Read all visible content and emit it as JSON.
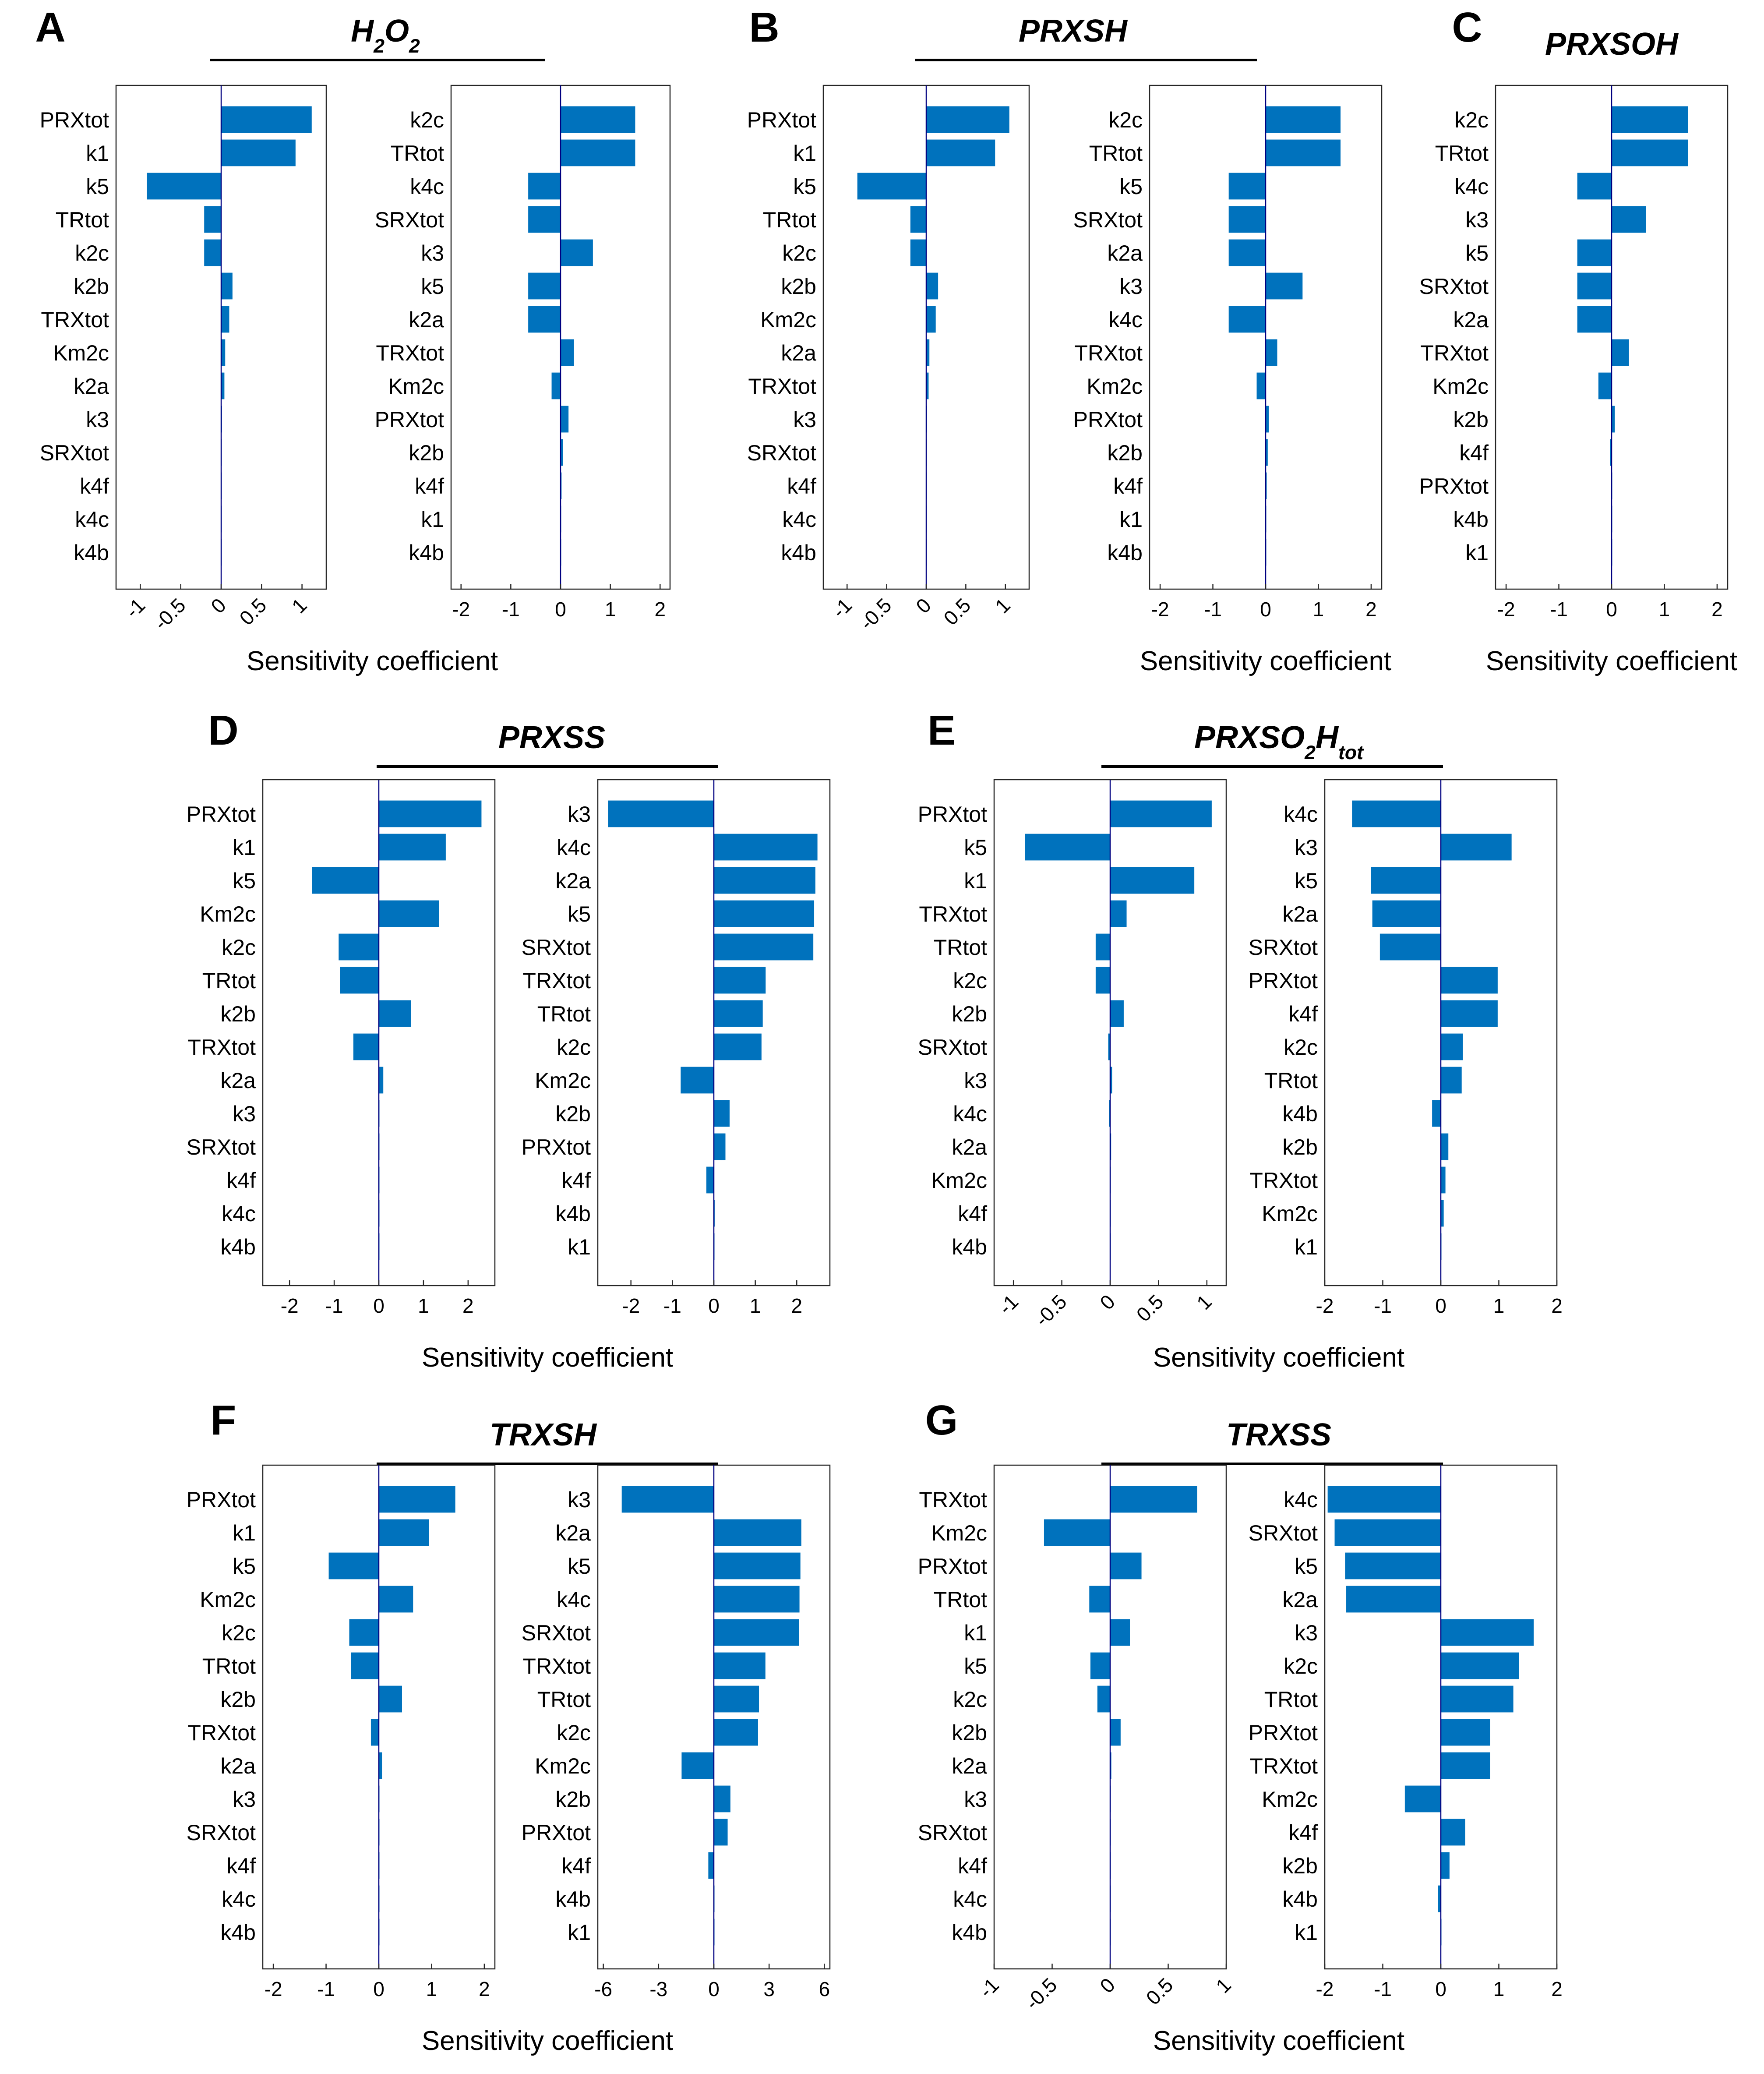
{
  "colors": {
    "bar": "#0072BD",
    "axis": "#262626",
    "zero_line": "#000080",
    "text": "#000000"
  },
  "xlabel": "Sensitivity coefficient",
  "panels": [
    {
      "letter": "A",
      "title": "H2O2",
      "title_parts": [
        [
          "H",
          ""
        ],
        [
          "2",
          "sub"
        ],
        [
          "O",
          ""
        ],
        [
          "2",
          "sub"
        ]
      ]
    },
    {
      "letter": "B",
      "title": "PRXSH",
      "title_parts": [
        [
          "PRXSH",
          ""
        ]
      ]
    },
    {
      "letter": "C",
      "title": "PRXSOH",
      "title_parts": [
        [
          "PRXSOH",
          ""
        ]
      ]
    },
    {
      "letter": "D",
      "title": "PRXSS",
      "title_parts": [
        [
          "PRXSS",
          ""
        ]
      ]
    },
    {
      "letter": "E",
      "title": "PRXSO2Htot",
      "title_parts": [
        [
          "PRXSO",
          ""
        ],
        [
          "2",
          "sub"
        ],
        [
          "H",
          ""
        ],
        [
          "tot",
          "sub"
        ]
      ]
    },
    {
      "letter": "F",
      "title": "TRXSH",
      "title_parts": [
        [
          "TRXSH",
          ""
        ]
      ]
    },
    {
      "letter": "G",
      "title": "TRXSS",
      "title_parts": [
        [
          "TRXSS",
          ""
        ]
      ]
    }
  ],
  "chart_data": [
    {
      "id": "A1",
      "panel": "A",
      "type": "bar",
      "orientation": "horizontal",
      "categories": [
        "PRXtot",
        "k1",
        "k5",
        "TRtot",
        "k2c",
        "k2b",
        "TRXtot",
        "Km2c",
        "k2a",
        "k3",
        "SRXtot",
        "k4f",
        "k4c",
        "k4b"
      ],
      "values": [
        1.12,
        0.92,
        -0.92,
        -0.21,
        -0.21,
        0.14,
        0.1,
        0.05,
        0.04,
        0.01,
        0.005,
        0.005,
        0.003,
        0.003
      ],
      "xlim": [
        -1.3,
        1.3
      ],
      "xticks": [
        -1,
        -0.5,
        0,
        0.5,
        1
      ],
      "xtick_labels": [
        "-1",
        "-0.5",
        "0",
        "0.5",
        "1"
      ],
      "rotated_ticks": true,
      "xlabel": ""
    },
    {
      "id": "A2",
      "panel": "A",
      "type": "bar",
      "orientation": "horizontal",
      "categories": [
        "k2c",
        "TRtot",
        "k4c",
        "SRXtot",
        "k3",
        "k5",
        "k2a",
        "TRXtot",
        "Km2c",
        "PRXtot",
        "k2b",
        "k4f",
        "k1",
        "k4b"
      ],
      "values": [
        1.5,
        1.5,
        -0.65,
        -0.65,
        0.65,
        -0.65,
        -0.65,
        0.27,
        -0.18,
        0.16,
        0.05,
        0.02,
        0.01,
        0.01
      ],
      "xlim": [
        -2.2,
        2.2
      ],
      "xticks": [
        -2,
        -1,
        0,
        1,
        2
      ],
      "xtick_labels": [
        "-2",
        "-1",
        "0",
        "1",
        "2"
      ],
      "rotated_ticks": false,
      "xlabel": ""
    },
    {
      "id": "B1",
      "panel": "B",
      "type": "bar",
      "orientation": "horizontal",
      "categories": [
        "PRXtot",
        "k1",
        "k5",
        "TRtot",
        "k2c",
        "k2b",
        "Km2c",
        "k2a",
        "TRXtot",
        "k3",
        "SRXtot",
        "k4f",
        "k4c",
        "k4b"
      ],
      "values": [
        1.05,
        0.87,
        -0.87,
        -0.2,
        -0.2,
        0.15,
        0.12,
        0.04,
        0.03,
        0.01,
        0.005,
        0.005,
        0.003,
        0.003
      ],
      "xlim": [
        -1.3,
        1.3
      ],
      "xticks": [
        -1,
        -0.5,
        0,
        0.5,
        1
      ],
      "xtick_labels": [
        "-1",
        "-0.5",
        "0",
        "0.5",
        "1"
      ],
      "rotated_ticks": true,
      "xlabel": ""
    },
    {
      "id": "B2",
      "panel": "B",
      "type": "bar",
      "orientation": "horizontal",
      "categories": [
        "k2c",
        "TRtot",
        "k5",
        "SRXtot",
        "k2a",
        "k3",
        "k4c",
        "TRXtot",
        "Km2c",
        "PRXtot",
        "k2b",
        "k4f",
        "k1",
        "k4b"
      ],
      "values": [
        1.42,
        1.42,
        -0.7,
        -0.7,
        -0.7,
        0.7,
        -0.7,
        0.22,
        -0.17,
        0.06,
        0.04,
        0.02,
        0.01,
        0.01
      ],
      "xlim": [
        -2.2,
        2.2
      ],
      "xticks": [
        -2,
        -1,
        0,
        1,
        2
      ],
      "xtick_labels": [
        "-2",
        "-1",
        "0",
        "1",
        "2"
      ],
      "rotated_ticks": false,
      "xlabel": "Sensitivity coefficient"
    },
    {
      "id": "C",
      "panel": "C",
      "type": "bar",
      "orientation": "horizontal",
      "categories": [
        "k2c",
        "TRtot",
        "k4c",
        "k3",
        "k5",
        "SRXtot",
        "k2a",
        "TRXtot",
        "Km2c",
        "k2b",
        "k4f",
        "PRXtot",
        "k4b",
        "k1"
      ],
      "values": [
        1.45,
        1.45,
        -0.65,
        0.65,
        -0.65,
        -0.65,
        -0.65,
        0.33,
        -0.25,
        0.06,
        -0.03,
        0.01,
        0.005,
        0.005
      ],
      "xlim": [
        -2.2,
        2.2
      ],
      "xticks": [
        -2,
        -1,
        0,
        1,
        2
      ],
      "xtick_labels": [
        "-2",
        "-1",
        "0",
        "1",
        "2"
      ],
      "rotated_ticks": false,
      "xlabel": "Sensitivity coefficient"
    },
    {
      "id": "D1",
      "panel": "D",
      "type": "bar",
      "orientation": "horizontal",
      "categories": [
        "PRXtot",
        "k1",
        "k5",
        "Km2c",
        "k2c",
        "TRtot",
        "k2b",
        "TRXtot",
        "k2a",
        "k3",
        "SRXtot",
        "k4f",
        "k4c",
        "k4b"
      ],
      "values": [
        2.3,
        1.5,
        -1.5,
        1.35,
        -0.9,
        -0.87,
        0.72,
        -0.57,
        0.1,
        0.01,
        0.01,
        0.005,
        0.005,
        0.005
      ],
      "xlim": [
        -2.6,
        2.6
      ],
      "xticks": [
        -2,
        -1,
        0,
        1,
        2
      ],
      "xtick_labels": [
        "-2",
        "-1",
        "0",
        "1",
        "2"
      ],
      "rotated_ticks": false,
      "xlabel": "Sensitivity coefficient"
    },
    {
      "id": "D2",
      "panel": "D",
      "type": "bar",
      "orientation": "horizontal",
      "categories": [
        "k3",
        "k4c",
        "k2a",
        "k5",
        "SRXtot",
        "TRXtot",
        "TRtot",
        "k2c",
        "Km2c",
        "k2b",
        "PRXtot",
        "k4f",
        "k4b",
        "k1"
      ],
      "values": [
        -2.55,
        2.5,
        2.45,
        2.42,
        2.4,
        1.25,
        1.18,
        1.15,
        -0.8,
        0.38,
        0.28,
        -0.18,
        0.02,
        0.01
      ],
      "xlim": [
        -2.8,
        2.8
      ],
      "xticks": [
        -2,
        -1,
        0,
        1,
        2
      ],
      "xtick_labels": [
        "-2",
        "-1",
        "0",
        "1",
        "2"
      ],
      "rotated_ticks": false,
      "xlabel": ""
    },
    {
      "id": "E1",
      "panel": "E",
      "type": "bar",
      "orientation": "horizontal",
      "categories": [
        "PRXtot",
        "k5",
        "k1",
        "TRXtot",
        "TRtot",
        "k2c",
        "k2b",
        "SRXtot",
        "k3",
        "k4c",
        "k2a",
        "Km2c",
        "k4f",
        "k4b"
      ],
      "values": [
        1.05,
        -0.88,
        0.87,
        0.17,
        -0.15,
        -0.15,
        0.14,
        -0.02,
        0.02,
        -0.01,
        0.01,
        0.005,
        0.003,
        0.003
      ],
      "xlim": [
        -1.2,
        1.2
      ],
      "xticks": [
        -1,
        -0.5,
        0,
        0.5,
        1
      ],
      "xtick_labels": [
        "-1",
        "-0.5",
        "0",
        "0.5",
        "1"
      ],
      "rotated_ticks": true,
      "xlabel": "Sensitivity coefficient"
    },
    {
      "id": "E2",
      "panel": "E",
      "type": "bar",
      "orientation": "horizontal",
      "categories": [
        "k4c",
        "k3",
        "k5",
        "k2a",
        "SRXtot",
        "PRXtot",
        "k4f",
        "k2c",
        "TRtot",
        "k4b",
        "k2b",
        "TRXtot",
        "Km2c",
        "k1"
      ],
      "values": [
        -1.53,
        1.22,
        -1.2,
        -1.18,
        -1.05,
        0.98,
        0.98,
        0.38,
        0.36,
        -0.15,
        0.13,
        0.08,
        0.05,
        0.01
      ],
      "xlim": [
        -2.0,
        2.0
      ],
      "xticks": [
        -2,
        -1,
        0,
        1,
        2
      ],
      "xtick_labels": [
        "-2",
        "-1",
        "0",
        "1",
        "2"
      ],
      "rotated_ticks": false,
      "xlabel": ""
    },
    {
      "id": "F1",
      "panel": "F",
      "type": "bar",
      "orientation": "horizontal",
      "categories": [
        "PRXtot",
        "k1",
        "k5",
        "Km2c",
        "k2c",
        "TRtot",
        "k2b",
        "TRXtot",
        "k2a",
        "k3",
        "SRXtot",
        "k4f",
        "k4c",
        "k4b"
      ],
      "values": [
        1.45,
        0.95,
        -0.95,
        0.65,
        -0.56,
        -0.53,
        0.44,
        -0.15,
        0.06,
        0.01,
        0.005,
        0.005,
        0.005,
        0.005
      ],
      "xlim": [
        -2.2,
        2.2
      ],
      "xticks": [
        -2,
        -1,
        0,
        1,
        2
      ],
      "xtick_labels": [
        "-2",
        "-1",
        "0",
        "1",
        "2"
      ],
      "rotated_ticks": false,
      "xlabel": "Sensitivity coefficient"
    },
    {
      "id": "F2",
      "panel": "F",
      "type": "bar",
      "orientation": "horizontal",
      "categories": [
        "k3",
        "k2a",
        "k5",
        "k4c",
        "SRXtot",
        "TRXtot",
        "TRtot",
        "k2c",
        "Km2c",
        "k2b",
        "PRXtot",
        "k4f",
        "k4b",
        "k1"
      ],
      "values": [
        -5.0,
        4.75,
        4.7,
        4.65,
        4.62,
        2.8,
        2.45,
        2.4,
        -1.75,
        0.9,
        0.75,
        -0.3,
        0.03,
        0.02
      ],
      "xlim": [
        -6.3,
        6.3
      ],
      "xticks": [
        -6,
        -3,
        0,
        3,
        6
      ],
      "xtick_labels": [
        "-6",
        "-3",
        "0",
        "3",
        "6"
      ],
      "rotated_ticks": false,
      "xlabel": ""
    },
    {
      "id": "G1",
      "panel": "G",
      "type": "bar",
      "orientation": "horizontal",
      "categories": [
        "TRXtot",
        "Km2c",
        "PRXtot",
        "TRtot",
        "k1",
        "k5",
        "k2c",
        "k2b",
        "k2a",
        "k3",
        "SRXtot",
        "k4f",
        "k4c",
        "k4b"
      ],
      "values": [
        0.75,
        -0.57,
        0.27,
        -0.18,
        0.17,
        -0.17,
        -0.11,
        0.09,
        0.01,
        0.005,
        0.005,
        0.005,
        0.003,
        0.003
      ],
      "xlim": [
        -1.0,
        1.0
      ],
      "xticks": [
        -1,
        -0.5,
        0,
        0.5,
        1
      ],
      "xtick_labels": [
        "-1",
        "-0.5",
        "0",
        "0.5",
        "1"
      ],
      "rotated_ticks": true,
      "xlabel": "Sensitivity coefficient"
    },
    {
      "id": "G2",
      "panel": "G",
      "type": "bar",
      "orientation": "horizontal",
      "categories": [
        "k4c",
        "SRXtot",
        "k5",
        "k2a",
        "k3",
        "k2c",
        "TRtot",
        "PRXtot",
        "TRXtot",
        "Km2c",
        "k4f",
        "k2b",
        "k4b",
        "k1"
      ],
      "values": [
        -1.95,
        -1.83,
        -1.65,
        -1.63,
        1.6,
        1.35,
        1.25,
        0.85,
        0.85,
        -0.62,
        0.42,
        0.15,
        -0.05,
        0.01
      ],
      "xlim": [
        -2.0,
        2.0
      ],
      "xticks": [
        -2,
        -1,
        0,
        1,
        2
      ],
      "xtick_labels": [
        "-2",
        "-1",
        "0",
        "1",
        "2"
      ],
      "rotated_ticks": false,
      "xlabel": ""
    }
  ]
}
